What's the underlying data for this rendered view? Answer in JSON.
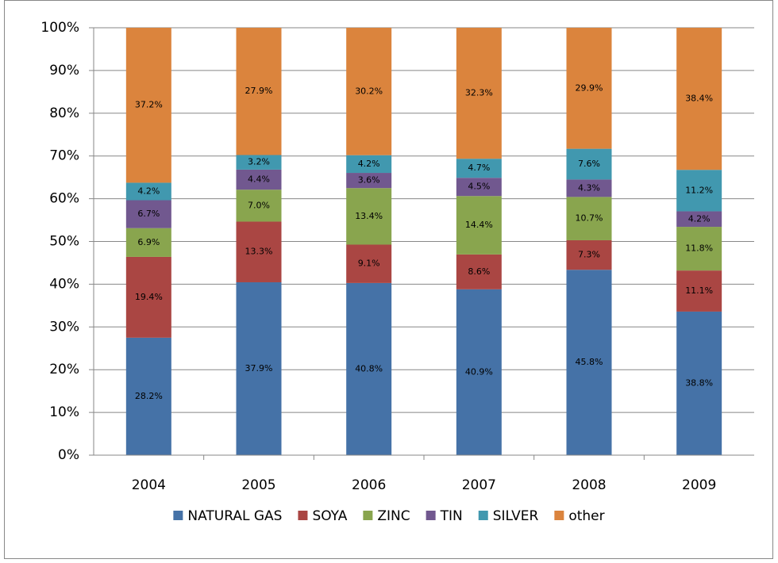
{
  "chart_data": {
    "type": "stacked_percent_bar",
    "categories": [
      "2004",
      "2005",
      "2006",
      "2007",
      "2008",
      "2009"
    ],
    "series": [
      {
        "name": "NATURAL GAS",
        "color": "#4572a7",
        "values": [
          28.2,
          37.9,
          40.8,
          40.9,
          45.8,
          38.8
        ],
        "value_labels": [
          "28.2%",
          "37.9%",
          "40.8%",
          "40.9%",
          "45.8%",
          "38.8%"
        ]
      },
      {
        "name": "SOYA",
        "color": "#aa4643",
        "values": [
          19.4,
          13.3,
          9.1,
          8.6,
          7.3,
          11.1
        ],
        "value_labels": [
          "19.4%",
          "13.3%",
          "9.1%",
          "8.6%",
          "7.3%",
          "11.1%"
        ]
      },
      {
        "name": "ZINC",
        "color": "#89a54e",
        "values": [
          6.9,
          7.0,
          13.4,
          14.4,
          10.7,
          11.8
        ],
        "value_labels": [
          "6.9%",
          "7.0%",
          "13.4%",
          "14.4%",
          "10.7%",
          "11.8%"
        ]
      },
      {
        "name": "TIN",
        "color": "#71588f",
        "values": [
          6.7,
          4.4,
          3.6,
          4.5,
          4.3,
          4.2
        ],
        "value_labels": [
          "6.7%",
          "4.4%",
          "3.6%",
          "4.5%",
          "4.3%",
          "4.2%"
        ]
      },
      {
        "name": "SILVER",
        "color": "#4198af",
        "values": [
          4.2,
          3.2,
          4.2,
          4.7,
          7.6,
          11.2
        ],
        "value_labels": [
          "4.2%",
          "3.2%",
          "4.2%",
          "4.7%",
          "7.6%",
          "11.2%"
        ]
      },
      {
        "name": "other",
        "color": "#db843d",
        "values": [
          37.2,
          27.9,
          30.2,
          32.3,
          29.9,
          38.4
        ],
        "value_labels": [
          "37.2%",
          "27.9%",
          "30.2%",
          "32.3%",
          "29.9%",
          "38.4%"
        ]
      }
    ],
    "ylim": [
      0,
      100
    ],
    "yticks": [
      {
        "value": 0,
        "label": "0%"
      },
      {
        "value": 10,
        "label": "10%"
      },
      {
        "value": 20,
        "label": "20%"
      },
      {
        "value": 30,
        "label": "30%"
      },
      {
        "value": 40,
        "label": "40%"
      },
      {
        "value": 50,
        "label": "50%"
      },
      {
        "value": 60,
        "label": "60%"
      },
      {
        "value": 70,
        "label": "70%"
      },
      {
        "value": 80,
        "label": "80%"
      },
      {
        "value": 90,
        "label": "90%"
      },
      {
        "value": 100,
        "label": "100%"
      }
    ],
    "grid": true,
    "legend": "bottom"
  }
}
